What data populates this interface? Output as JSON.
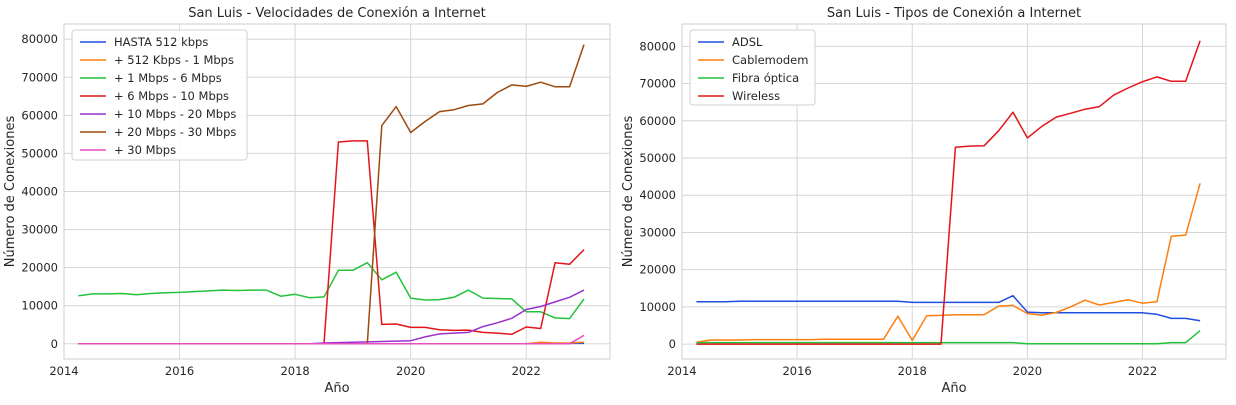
{
  "chart_data": [
    {
      "type": "line",
      "title": "San Luis - Velocidades de Conexión a Internet",
      "xlabel": "Año",
      "ylabel": "Número de Conexiones",
      "xlim": [
        2014.0,
        2023.45
      ],
      "ylim": [
        -4000,
        84000
      ],
      "xticks": [
        2014,
        2016,
        2018,
        2020,
        2022
      ],
      "yticks": [
        0,
        10000,
        20000,
        30000,
        40000,
        50000,
        60000,
        70000,
        80000
      ],
      "grid": true,
      "legend": "top-left",
      "x": [
        2014.25,
        2014.5,
        2014.75,
        2015.0,
        2015.25,
        2015.5,
        2015.75,
        2016.0,
        2016.25,
        2016.5,
        2016.75,
        2017.0,
        2017.25,
        2017.5,
        2017.75,
        2018.0,
        2018.25,
        2018.5,
        2018.75,
        2019.0,
        2019.25,
        2019.5,
        2019.75,
        2020.0,
        2020.25,
        2020.5,
        2020.75,
        2021.0,
        2021.25,
        2021.5,
        2021.75,
        2022.0,
        2022.25,
        2022.5,
        2022.75,
        2023.0
      ],
      "series": [
        {
          "name": "HASTA 512 kbps",
          "color": "#1f4fe0",
          "values": [
            0,
            0,
            0,
            0,
            0,
            0,
            0,
            0,
            0,
            0,
            0,
            0,
            0,
            0,
            0,
            0,
            0,
            0,
            0,
            0,
            0,
            0,
            0,
            0,
            0,
            0,
            0,
            0,
            0,
            0,
            0,
            0,
            100,
            100,
            100,
            100
          ]
        },
        {
          "name": "+ 512 Kbps - 1 Mbps",
          "color": "#ff7f0e",
          "values": [
            0,
            0,
            0,
            0,
            0,
            0,
            0,
            0,
            0,
            0,
            0,
            0,
            0,
            0,
            0,
            0,
            0,
            0,
            0,
            0,
            0,
            0,
            0,
            0,
            0,
            0,
            0,
            0,
            0,
            0,
            0,
            0,
            400,
            200,
            200,
            400
          ]
        },
        {
          "name": "+ 1 Mbps - 6 Mbps",
          "color": "#22c23a",
          "values": [
            12600,
            13100,
            13100,
            13200,
            12900,
            13200,
            13400,
            13500,
            13700,
            13900,
            14100,
            14000,
            14100,
            14100,
            12500,
            13000,
            12100,
            12300,
            19300,
            19300,
            21300,
            16800,
            18800,
            12000,
            11500,
            11600,
            12200,
            14100,
            12000,
            11900,
            11800,
            8400,
            8400,
            6800,
            6600,
            11800
          ]
        },
        {
          "name": "+ 6 Mbps - 10 Mbps",
          "color": "#e3151b",
          "values": [
            0,
            0,
            0,
            0,
            0,
            0,
            0,
            0,
            0,
            0,
            0,
            0,
            0,
            0,
            0,
            0,
            0,
            0,
            53000,
            53300,
            53300,
            5100,
            5200,
            4300,
            4300,
            3700,
            3500,
            3600,
            3000,
            2800,
            2500,
            4400,
            4000,
            21300,
            20900,
            24700
          ]
        },
        {
          "name": "+ 10 Mbps - 20 Mbps",
          "color": "#9932cc",
          "values": [
            0,
            0,
            0,
            0,
            0,
            0,
            0,
            0,
            0,
            0,
            0,
            0,
            0,
            0,
            0,
            0,
            0,
            200,
            300,
            400,
            500,
            600,
            700,
            800,
            1800,
            2600,
            2800,
            3000,
            4500,
            5500,
            6700,
            9000,
            9800,
            11000,
            12200,
            14100
          ]
        },
        {
          "name": "+ 20 Mbps - 30 Mbps",
          "color": "#9c4a0f",
          "values": [
            0,
            0,
            0,
            0,
            0,
            0,
            0,
            0,
            0,
            0,
            0,
            0,
            0,
            0,
            0,
            0,
            0,
            0,
            0,
            0,
            0,
            57300,
            62300,
            55500,
            58400,
            61000,
            61500,
            62600,
            63000,
            66000,
            68000,
            67600,
            68700,
            67500,
            67500,
            78600
          ]
        },
        {
          "name": "+ 30 Mbps",
          "color": "#e84bc2",
          "values": [
            0,
            0,
            0,
            0,
            0,
            0,
            0,
            0,
            0,
            0,
            0,
            0,
            0,
            0,
            0,
            0,
            0,
            0,
            0,
            0,
            0,
            0,
            0,
            0,
            0,
            0,
            0,
            0,
            0,
            0,
            0,
            0,
            0,
            0,
            0,
            2200
          ]
        }
      ]
    },
    {
      "type": "line",
      "title": "San Luis - Tipos de Conexión a Internet",
      "xlabel": "Año",
      "ylabel": "Número de Conexiones",
      "xlim": [
        2014.0,
        2023.45
      ],
      "ylim": [
        -4000,
        86000
      ],
      "xticks": [
        2014,
        2016,
        2018,
        2020,
        2022
      ],
      "yticks": [
        0,
        10000,
        20000,
        30000,
        40000,
        50000,
        60000,
        70000,
        80000
      ],
      "grid": true,
      "legend": "top-left",
      "x": [
        2014.25,
        2014.5,
        2014.75,
        2015.0,
        2015.25,
        2015.5,
        2015.75,
        2016.0,
        2016.25,
        2016.5,
        2016.75,
        2017.0,
        2017.25,
        2017.5,
        2017.75,
        2018.0,
        2018.25,
        2018.5,
        2018.75,
        2019.0,
        2019.25,
        2019.5,
        2019.75,
        2020.0,
        2020.25,
        2020.5,
        2020.75,
        2021.0,
        2021.25,
        2021.5,
        2021.75,
        2022.0,
        2022.25,
        2022.5,
        2022.75,
        2023.0
      ],
      "series": [
        {
          "name": "ADSL",
          "color": "#1f4fe0",
          "values": [
            11400,
            11400,
            11400,
            11500,
            11500,
            11500,
            11500,
            11500,
            11500,
            11500,
            11500,
            11500,
            11500,
            11500,
            11500,
            11200,
            11200,
            11200,
            11200,
            11200,
            11200,
            11200,
            13000,
            8600,
            8400,
            8400,
            8400,
            8400,
            8400,
            8400,
            8400,
            8400,
            8000,
            6900,
            6900,
            6300
          ]
        },
        {
          "name": "Cablemodem",
          "color": "#ff7f0e",
          "values": [
            500,
            1100,
            1100,
            1100,
            1200,
            1200,
            1200,
            1200,
            1200,
            1300,
            1300,
            1300,
            1300,
            1300,
            7500,
            1000,
            7600,
            7700,
            7900,
            7900,
            7900,
            10200,
            10400,
            8200,
            7800,
            8500,
            10000,
            11800,
            10500,
            11200,
            11900,
            11000,
            11400,
            29000,
            29300,
            43200
          ]
        },
        {
          "name": "Fibra óptica",
          "color": "#22c23a",
          "values": [
            400,
            400,
            400,
            400,
            400,
            400,
            400,
            400,
            400,
            400,
            400,
            400,
            400,
            400,
            400,
            400,
            400,
            400,
            400,
            400,
            400,
            400,
            400,
            100,
            100,
            100,
            100,
            100,
            100,
            100,
            100,
            100,
            100,
            400,
            400,
            3600
          ]
        },
        {
          "name": "Wireless",
          "color": "#e3151b",
          "values": [
            0,
            0,
            0,
            0,
            0,
            0,
            0,
            0,
            0,
            0,
            0,
            0,
            0,
            0,
            0,
            0,
            0,
            0,
            52900,
            53200,
            53300,
            57300,
            62300,
            55400,
            58500,
            61000,
            62000,
            63100,
            63800,
            66900,
            68800,
            70500,
            71800,
            70600,
            70600,
            81500
          ]
        }
      ]
    }
  ]
}
